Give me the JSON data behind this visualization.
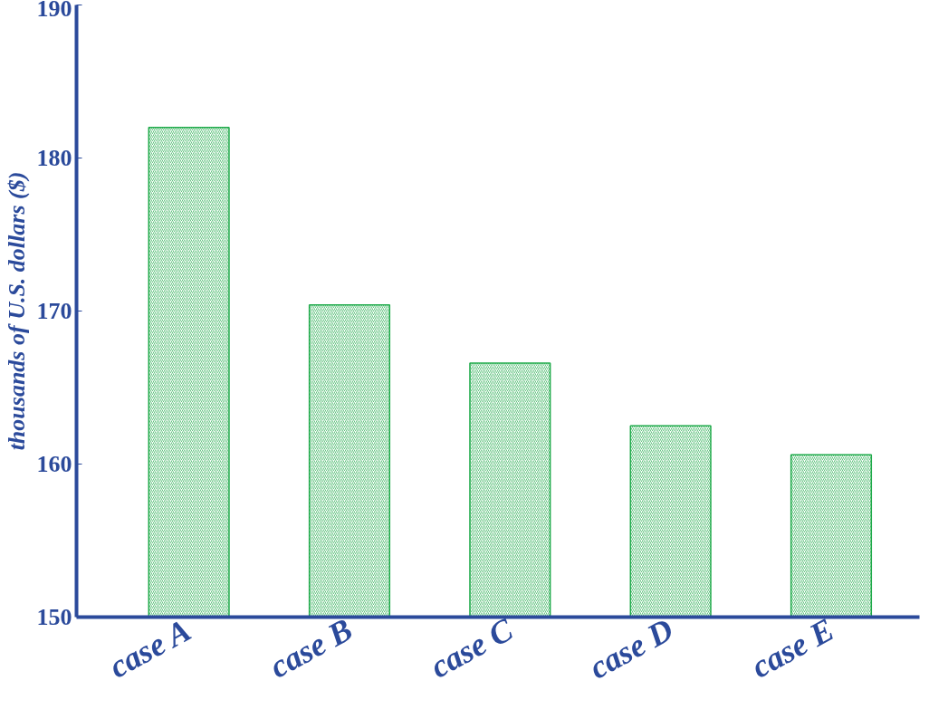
{
  "chart_data": {
    "type": "bar",
    "ylabel": "thousands of U.S. dollars ($)",
    "categories": [
      "case A",
      "case B",
      "case C",
      "case D",
      "case E"
    ],
    "values": [
      182.0,
      170.4,
      166.6,
      162.5,
      160.6
    ],
    "color": "#1faa4a",
    "ylim": [
      150,
      190
    ],
    "yticks": [
      150,
      160,
      170,
      180,
      190
    ],
    "grid": false
  }
}
